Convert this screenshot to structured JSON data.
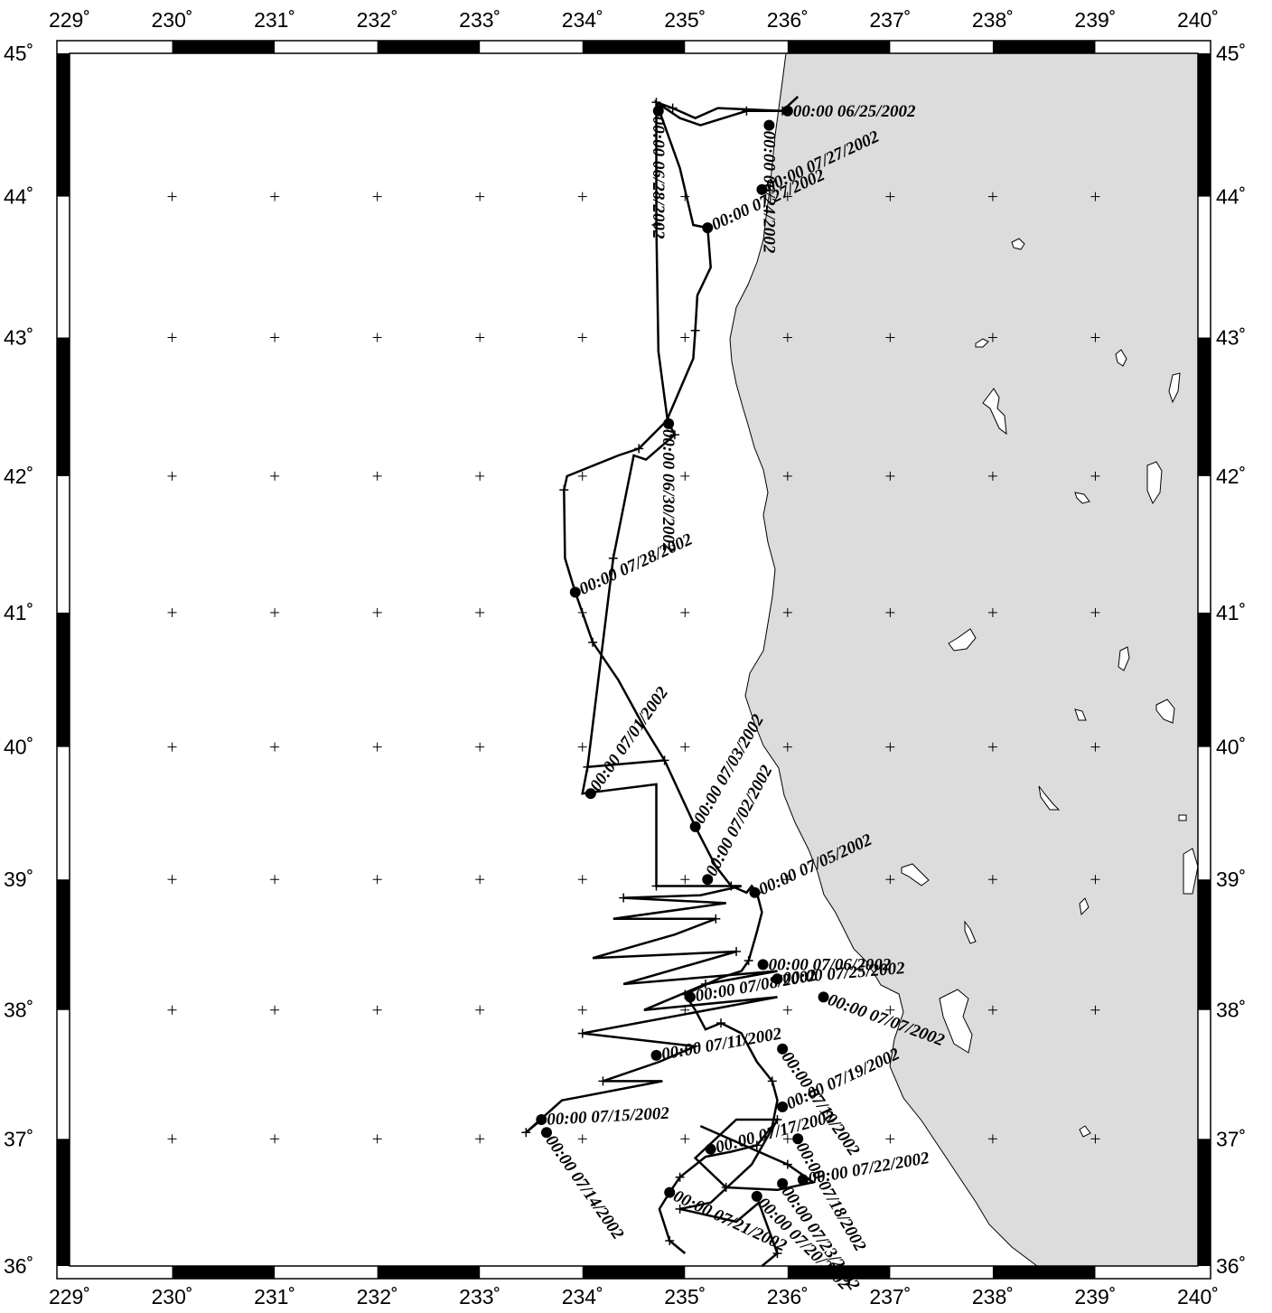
{
  "map": {
    "projection": "Mercator",
    "lon_range": [
      229,
      240
    ],
    "lat_range": [
      36,
      45
    ],
    "colors": {
      "land": "#dcdcdc",
      "ocean": "#ffffff",
      "track": "#000000",
      "frame": "#000000"
    },
    "lon_ticks": [
      "229˚",
      "230˚",
      "231˚",
      "232˚",
      "233˚",
      "234˚",
      "235˚",
      "236˚",
      "237˚",
      "238˚",
      "239˚",
      "240˚"
    ],
    "lat_ticks": [
      "36˚",
      "37˚",
      "38˚",
      "39˚",
      "40˚",
      "41˚",
      "42˚",
      "43˚",
      "44˚",
      "45˚"
    ]
  },
  "track": {
    "labels": [
      {
        "text": "00:00 06/25/2002",
        "lon": 236.0,
        "lat": 44.6,
        "angle": 0
      },
      {
        "text": "00:00 06/24/2002",
        "lon": 235.82,
        "lat": 44.5,
        "angle": 90
      },
      {
        "text": "00:00 07/27/2002",
        "lon": 235.75,
        "lat": 44.05,
        "angle": -25
      },
      {
        "text": "00:00 06/28/2002",
        "lon": 234.74,
        "lat": 44.6,
        "angle": 90
      },
      {
        "text": "00:00 07/27/2002",
        "lon": 235.22,
        "lat": 43.78,
        "angle": -25
      },
      {
        "text": "00:00 06/30/2002",
        "lon": 234.84,
        "lat": 42.38,
        "angle": 90
      },
      {
        "text": "00:00 07/28/2002",
        "lon": 233.93,
        "lat": 41.15,
        "angle": -25
      },
      {
        "text": "00:00 07/01/2002",
        "lon": 234.08,
        "lat": 39.65,
        "angle": -55
      },
      {
        "text": "00:00 07/03/2002",
        "lon": 235.1,
        "lat": 39.4,
        "angle": -60
      },
      {
        "text": "00:00 07/02/2002",
        "lon": 235.22,
        "lat": 39.0,
        "angle": -62
      },
      {
        "text": "00:00 07/05/2002",
        "lon": 235.68,
        "lat": 38.9,
        "angle": -25
      },
      {
        "text": "00:00 07/06/2002",
        "lon": 235.76,
        "lat": 38.35,
        "angle": 0
      },
      {
        "text": "00:00 07/25/2002",
        "lon": 235.9,
        "lat": 38.24,
        "angle": -5
      },
      {
        "text": "00:00 07/08/2002",
        "lon": 235.05,
        "lat": 38.1,
        "angle": -10
      },
      {
        "text": "00:00 07/15/2002",
        "lon": 233.6,
        "lat": 37.15,
        "angle": -3
      },
      {
        "text": "00:00 07/14/2002",
        "lon": 233.65,
        "lat": 37.05,
        "angle": 55
      },
      {
        "text": "00:00 07/22/2002",
        "lon": 236.15,
        "lat": 36.68,
        "angle": -10
      },
      {
        "text": "00:00 07/18/2002",
        "lon": 236.1,
        "lat": 37.0,
        "angle": 60
      },
      {
        "text": "00:00 07/23/2002",
        "lon": 235.95,
        "lat": 36.65,
        "angle": 55
      },
      {
        "text": "00:00 07/19/2002",
        "lon": 235.95,
        "lat": 37.25,
        "angle": -25
      },
      {
        "text": "00:00 07/10/2002",
        "lon": 235.95,
        "lat": 37.7,
        "angle": 55
      },
      {
        "text": "00:00 07/21/2002",
        "lon": 234.85,
        "lat": 36.58,
        "angle": 25
      },
      {
        "text": "00:00 07/20/2002",
        "lon": 235.7,
        "lat": 36.55,
        "angle": 45
      },
      {
        "text": "00:00 07/17/2002",
        "lon": 235.25,
        "lat": 36.92,
        "angle": -15
      },
      {
        "text": "00:00 07/11/2002",
        "lon": 234.72,
        "lat": 37.65,
        "angle": -10
      },
      {
        "text": "00:00 07/07/2002",
        "lon": 236.35,
        "lat": 38.1,
        "angle": 20
      }
    ],
    "points": [
      [
        234.72,
        44.66
      ],
      [
        234.88,
        44.62
      ],
      [
        235.1,
        44.55
      ],
      [
        235.32,
        44.62
      ],
      [
        235.95,
        44.6
      ],
      [
        236.1,
        44.7
      ],
      [
        235.95,
        44.6
      ],
      [
        235.6,
        44.6
      ],
      [
        235.15,
        44.5
      ],
      [
        234.95,
        44.55
      ],
      [
        234.72,
        44.66
      ],
      [
        234.95,
        44.2
      ],
      [
        235.08,
        43.8
      ],
      [
        235.22,
        43.78
      ],
      [
        235.25,
        43.5
      ],
      [
        235.12,
        43.3
      ],
      [
        235.1,
        43.05
      ],
      [
        235.08,
        42.85
      ],
      [
        234.82,
        42.4
      ],
      [
        234.55,
        42.2
      ],
      [
        234.35,
        42.15
      ],
      [
        233.85,
        42.0
      ],
      [
        233.82,
        41.9
      ],
      [
        233.83,
        41.4
      ],
      [
        233.93,
        41.15
      ],
      [
        234.1,
        40.78
      ],
      [
        234.35,
        40.5
      ],
      [
        234.6,
        40.15
      ],
      [
        234.8,
        39.9
      ],
      [
        235.1,
        39.4
      ],
      [
        235.3,
        39.1
      ],
      [
        235.45,
        38.95
      ],
      [
        235.6,
        38.9
      ],
      [
        235.65,
        38.95
      ],
      [
        235.7,
        38.9
      ],
      [
        235.75,
        38.75
      ],
      [
        235.7,
        38.6
      ],
      [
        235.62,
        38.38
      ],
      [
        235.55,
        38.3
      ],
      [
        235.35,
        38.25
      ],
      [
        235.0,
        38.12
      ],
      [
        235.1,
        38.0
      ],
      [
        235.2,
        37.85
      ],
      [
        235.35,
        37.9
      ],
      [
        235.55,
        37.82
      ],
      [
        235.7,
        37.6
      ],
      [
        235.85,
        37.45
      ],
      [
        235.9,
        37.3
      ],
      [
        235.85,
        37.1
      ],
      [
        235.7,
        36.95
      ],
      [
        235.45,
        36.9
      ],
      [
        235.2,
        36.86
      ],
      [
        234.95,
        36.7
      ],
      [
        234.85,
        36.58
      ],
      [
        234.75,
        36.45
      ],
      [
        234.85,
        36.2
      ],
      [
        235.0,
        36.1
      ]
    ],
    "points_2": [
      [
        234.72,
        44.66
      ],
      [
        234.72,
        43.8
      ],
      [
        234.74,
        42.9
      ],
      [
        234.83,
        42.4
      ],
      [
        234.9,
        42.3
      ],
      [
        234.62,
        42.12
      ],
      [
        234.5,
        42.15
      ],
      [
        234.3,
        41.4
      ],
      [
        234.05,
        39.85
      ],
      [
        234.8,
        39.9
      ],
      [
        234.05,
        39.85
      ],
      [
        234.0,
        39.65
      ],
      [
        234.72,
        39.72
      ],
      [
        234.72,
        38.95
      ],
      [
        235.55,
        38.95
      ],
      [
        235.15,
        38.88
      ],
      [
        234.4,
        38.86
      ],
      [
        235.4,
        38.82
      ],
      [
        234.3,
        38.7
      ],
      [
        235.3,
        38.7
      ],
      [
        234.9,
        38.58
      ],
      [
        234.1,
        38.4
      ],
      [
        235.5,
        38.45
      ],
      [
        234.4,
        38.2
      ],
      [
        235.9,
        38.3
      ],
      [
        235.2,
        38.2
      ],
      [
        234.6,
        38.0
      ],
      [
        235.9,
        38.1
      ],
      [
        234.0,
        37.82
      ],
      [
        235.1,
        37.72
      ],
      [
        234.75,
        37.6
      ],
      [
        234.2,
        37.45
      ],
      [
        234.78,
        37.45
      ],
      [
        233.8,
        37.3
      ],
      [
        233.45,
        37.05
      ],
      [
        233.6,
        37.15
      ]
    ],
    "points_3": [
      [
        235.15,
        37.1
      ],
      [
        236.0,
        36.8
      ],
      [
        236.25,
        36.66
      ],
      [
        235.9,
        36.6
      ],
      [
        235.4,
        36.62
      ],
      [
        235.1,
        36.85
      ],
      [
        235.5,
        37.15
      ],
      [
        235.9,
        37.15
      ],
      [
        235.65,
        36.8
      ],
      [
        235.25,
        36.5
      ],
      [
        234.95,
        36.45
      ],
      [
        235.5,
        36.35
      ],
      [
        235.72,
        36.5
      ],
      [
        235.9,
        36.1
      ],
      [
        235.75,
        36.0
      ]
    ]
  }
}
